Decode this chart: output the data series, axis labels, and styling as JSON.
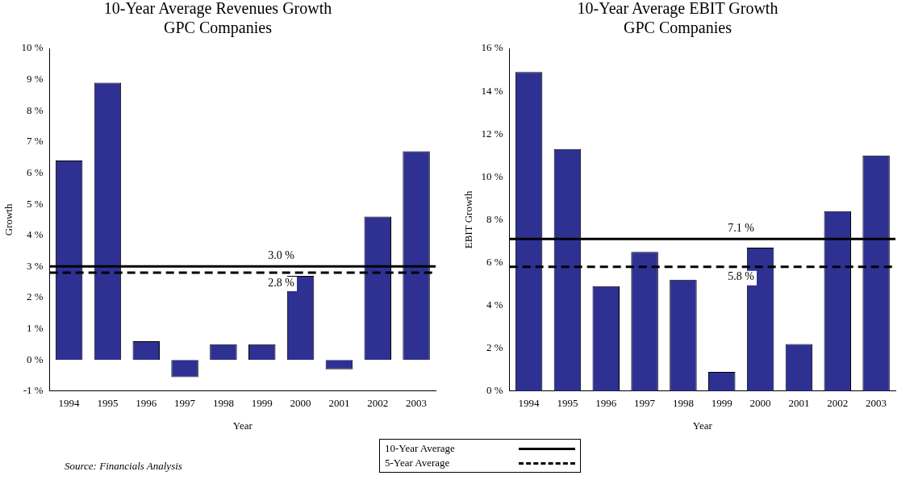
{
  "chart_data": [
    {
      "type": "bar",
      "title": "10-Year Average Revenues Growth",
      "subtitle": "GPC Companies",
      "xlabel": "Year",
      "ylabel": "Growth",
      "categories": [
        "1994",
        "1995",
        "1996",
        "1997",
        "1998",
        "1999",
        "2000",
        "2001",
        "2002",
        "2003"
      ],
      "values": [
        6.4,
        8.9,
        0.6,
        -0.55,
        0.5,
        0.5,
        2.7,
        -0.3,
        4.6,
        6.7
      ],
      "color": "#2e3192",
      "ylim": [
        -1,
        10
      ],
      "yticks": [
        {
          "value": -1,
          "label": "-1 %"
        },
        {
          "value": 0,
          "label": "0 %"
        },
        {
          "value": 1,
          "label": "1 %"
        },
        {
          "value": 2,
          "label": "2 %"
        },
        {
          "value": 3,
          "label": "3 %"
        },
        {
          "value": 4,
          "label": "4 %"
        },
        {
          "value": 5,
          "label": "5 %"
        },
        {
          "value": 6,
          "label": "6 %"
        },
        {
          "value": 7,
          "label": "7 %"
        },
        {
          "value": 8,
          "label": "8 %"
        },
        {
          "value": 9,
          "label": "9 %"
        },
        {
          "value": 10,
          "label": "10 %"
        }
      ],
      "ref_lines": [
        {
          "axis": "y",
          "value": 3.0,
          "label": "3.0 %",
          "color": "#000000",
          "line_style": "solid"
        },
        {
          "axis": "y",
          "value": 2.8,
          "label": "2.8 %",
          "color": "#000000",
          "line_style": "dashed"
        }
      ],
      "annotations": [
        "10-Year Average",
        "5-Year Average",
        "Source: Financials Analysis"
      ],
      "grid": false,
      "legend": false
    },
    {
      "type": "bar",
      "title": "10-Year Average EBIT Growth",
      "subtitle": "GPC Companies",
      "xlabel": "Year",
      "ylabel": "EBIT Growth",
      "categories": [
        "1994",
        "1995",
        "1996",
        "1997",
        "1998",
        "1999",
        "2000",
        "2001",
        "2002",
        "2003"
      ],
      "values": [
        14.9,
        11.3,
        4.9,
        6.5,
        5.2,
        0.9,
        6.7,
        2.2,
        8.4,
        11.0
      ],
      "color": "#2e3192",
      "ylim": [
        0,
        16
      ],
      "yticks": [
        {
          "value": 0,
          "label": "0 %"
        },
        {
          "value": 2,
          "label": "2 %"
        },
        {
          "value": 4,
          "label": "4 %"
        },
        {
          "value": 6,
          "label": "6 %"
        },
        {
          "value": 8,
          "label": "8 %"
        },
        {
          "value": 10,
          "label": "10 %"
        },
        {
          "value": 12,
          "label": "12 %"
        },
        {
          "value": 14,
          "label": "14 %"
        },
        {
          "value": 16,
          "label": "16 %"
        }
      ],
      "ref_lines": [
        {
          "axis": "y",
          "value": 7.1,
          "label": "7.1 %",
          "color": "#000000",
          "line_style": "solid"
        },
        {
          "axis": "y",
          "value": 5.8,
          "label": "5.8 %",
          "color": "#000000",
          "line_style": "dashed"
        }
      ],
      "grid": false,
      "legend": false
    }
  ]
}
